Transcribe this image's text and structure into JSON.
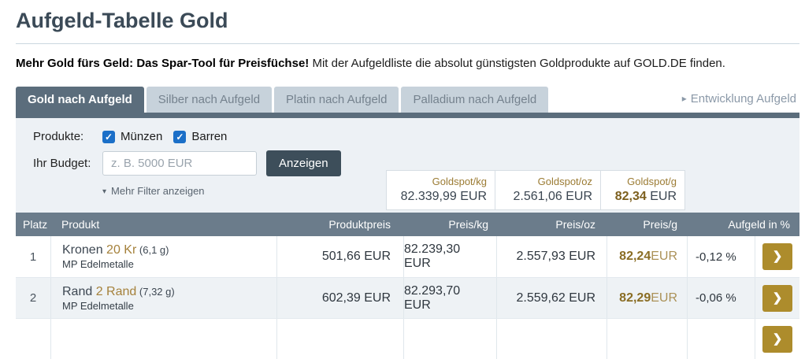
{
  "page": {
    "title": "Aufgeld-Tabelle Gold",
    "intro_bold": "Mehr Gold fürs Geld: Das Spar-Tool für Preisfüchse!",
    "intro_rest": " Mit der Aufgeldliste die absolut günstigsten Goldprodukte auf GOLD.DE finden."
  },
  "icons": {
    "arrow_right": "▸",
    "caret_down": "▾",
    "check": "✓",
    "chevron_right": "❯"
  },
  "tabs": [
    {
      "label": "Gold nach Aufgeld",
      "active": true
    },
    {
      "label": "Silber nach Aufgeld",
      "active": false
    },
    {
      "label": "Platin nach Aufgeld",
      "active": false
    },
    {
      "label": "Palladium nach Aufgeld",
      "active": false
    }
  ],
  "dev_link_label": "Entwicklung Aufgeld",
  "filters": {
    "produkte_label": "Produkte:",
    "checkboxes": [
      {
        "label": "Münzen",
        "checked": true
      },
      {
        "label": "Barren",
        "checked": true
      }
    ],
    "budget_label": "Ihr Budget:",
    "budget_placeholder": "z. B. 5000 EUR",
    "budget_value": "",
    "submit_label": "Anzeigen",
    "more_filters_label": "Mehr Filter anzeigen"
  },
  "goldspot": [
    {
      "label": "Goldspot/kg",
      "value": "82.339,99 EUR"
    },
    {
      "label": "Goldspot/oz",
      "value": "2.561,06 EUR"
    },
    {
      "label": "Goldspot/g",
      "value_bold": "82,34",
      "value_suffix": " EUR"
    }
  ],
  "table": {
    "headers": {
      "platz": "Platz",
      "produkt": "Produkt",
      "produktpreis": "Produktpreis",
      "preis_kg": "Preis/kg",
      "preis_oz": "Preis/oz",
      "preis_g": "Preis/g",
      "aufgeld": "Aufgeld in %"
    },
    "rows": [
      {
        "platz": "1",
        "name": "Kronen ",
        "variant": "20 Kr",
        "weight": " (6,1 g)",
        "dealer": "MP Edelmetalle",
        "produktpreis": "501,66 EUR",
        "preis_kg": "82.239,30 EUR",
        "preis_oz": "2.557,93 EUR",
        "preis_g": "82,24",
        "preis_g_suffix": " EUR",
        "aufgeld": "-0,12 %"
      },
      {
        "platz": "2",
        "name": "Rand ",
        "variant": "2 Rand",
        "weight": " (7,32 g)",
        "dealer": "MP Edelmetalle",
        "produktpreis": "602,39 EUR",
        "preis_kg": "82.293,70 EUR",
        "preis_oz": "2.559,62 EUR",
        "preis_g": "82,29",
        "preis_g_suffix": " EUR",
        "aufgeld": "-0,06 %"
      }
    ]
  },
  "colors": {
    "accent_gold": "#a5813b",
    "gold_button": "#ad8c2c",
    "slate_tab": "#5b6d7c",
    "table_header_bg": "#6b7c8b",
    "checkbox_blue": "#1b6fc8",
    "dark_button": "#3d4e5a",
    "panel_bg": "#edf1f5"
  }
}
